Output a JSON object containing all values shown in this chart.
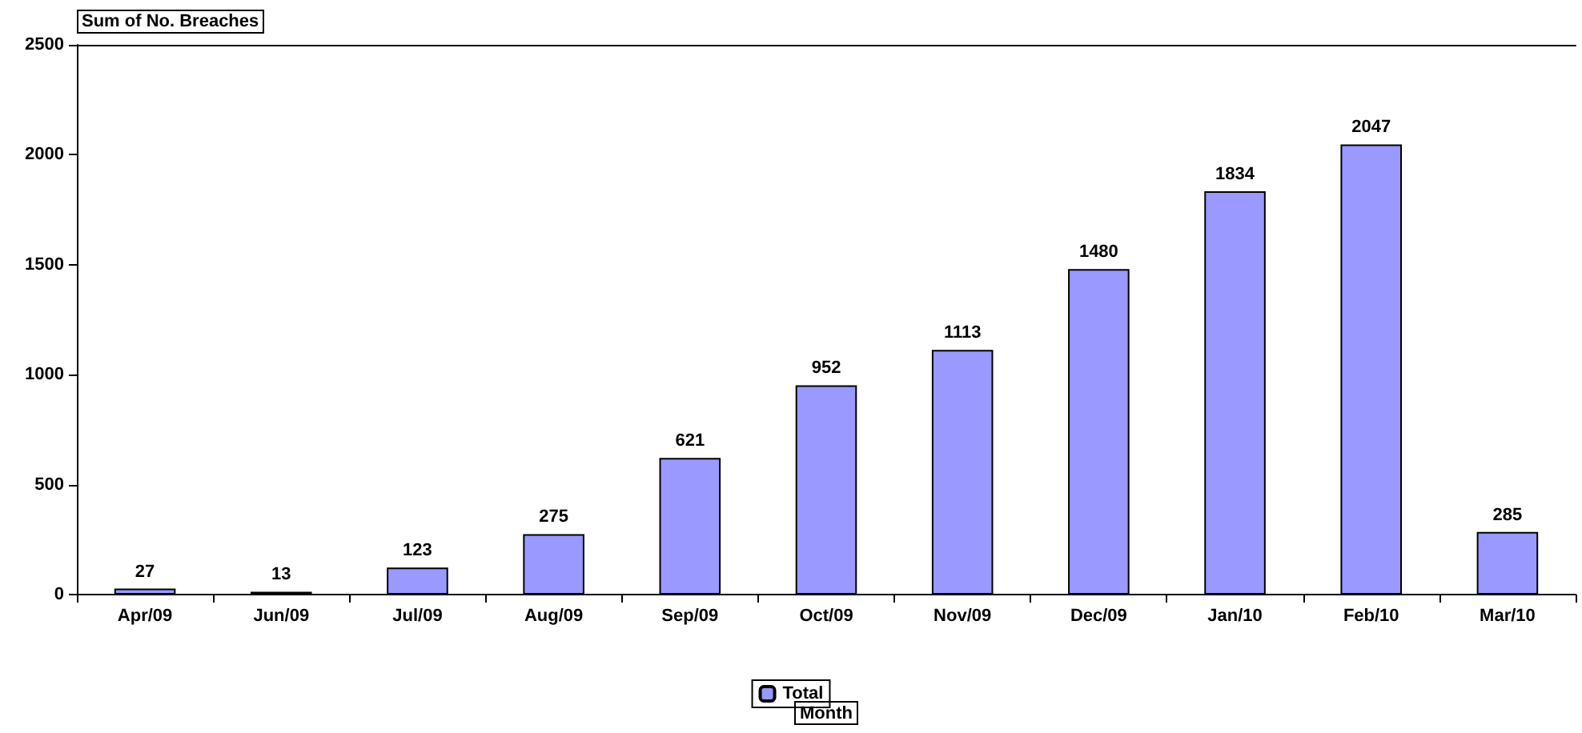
{
  "chart_data": {
    "type": "bar",
    "title": "Sum of No. Breaches",
    "xlabel": "Month",
    "categories": [
      "Apr/09",
      "Jun/09",
      "Jul/09",
      "Aug/09",
      "Sep/09",
      "Oct/09",
      "Nov/09",
      "Dec/09",
      "Jan/10",
      "Feb/10",
      "Mar/10"
    ],
    "series": [
      {
        "name": "Total",
        "color": "#9999ff",
        "values": [
          27,
          13,
          123,
          275,
          621,
          952,
          1113,
          1480,
          1834,
          2047,
          285
        ]
      }
    ],
    "ylim": [
      0,
      2500
    ],
    "yticks": [
      0,
      500,
      1000,
      1500,
      2000,
      2500
    ],
    "data_labels": true,
    "grid": false,
    "legend": "bottom"
  }
}
